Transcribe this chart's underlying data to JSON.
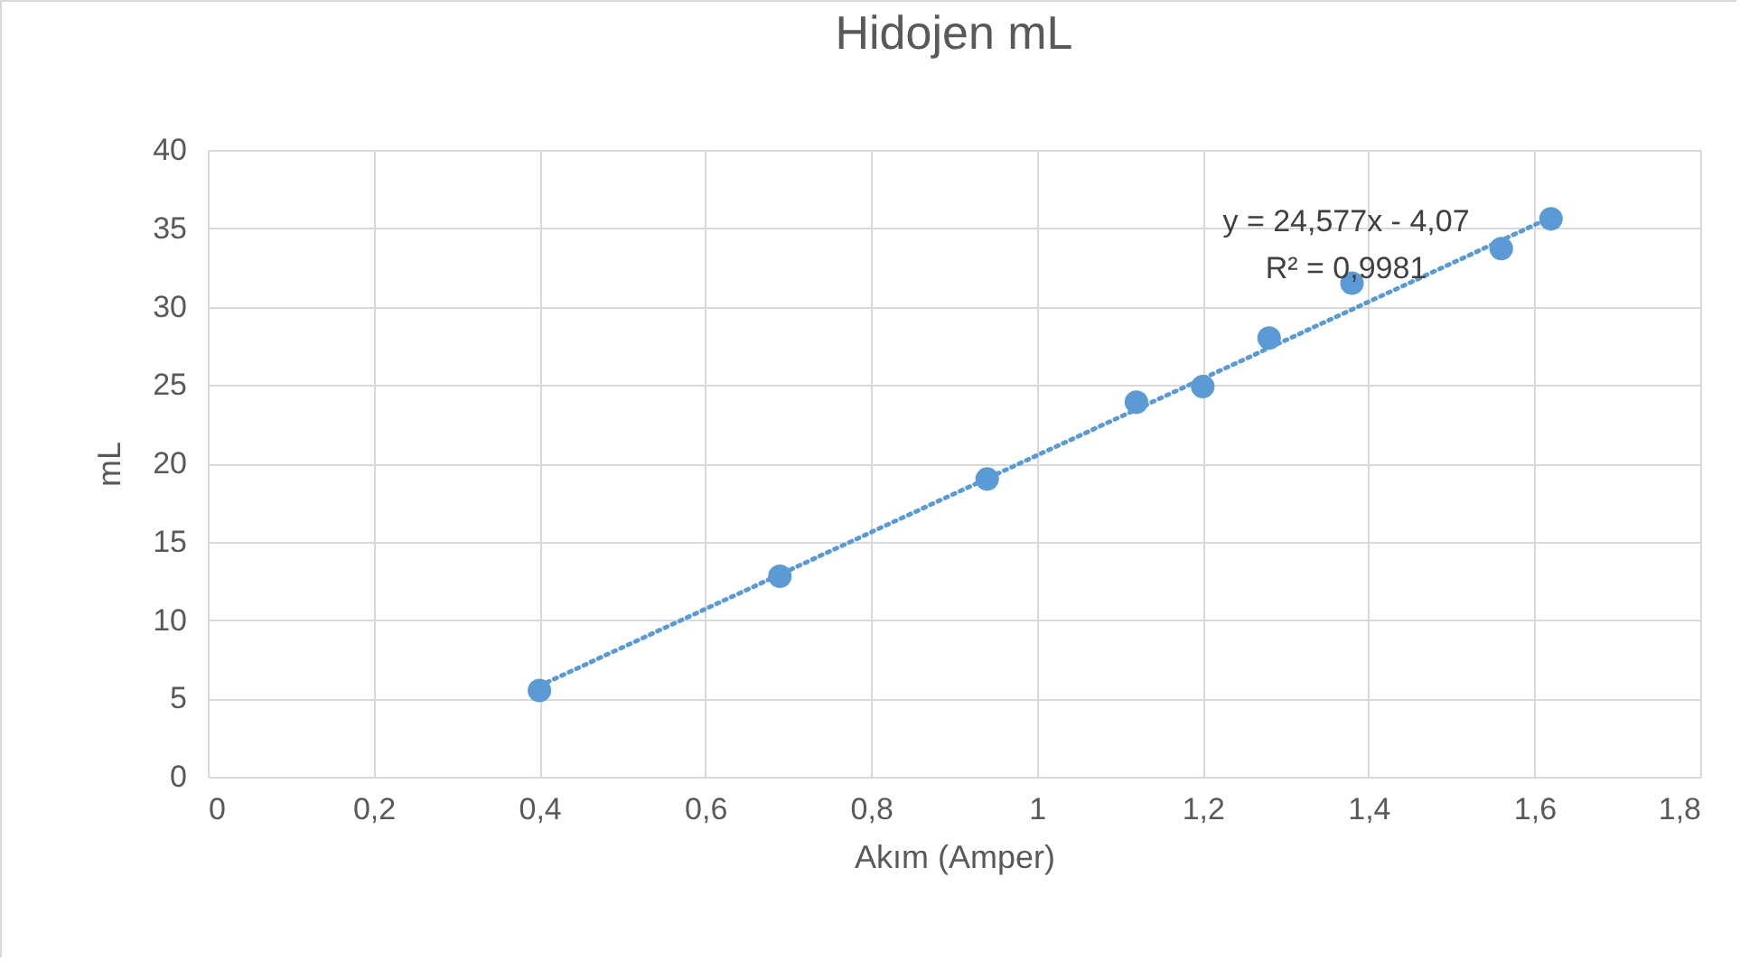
{
  "chart_data": {
    "type": "scatter",
    "title": "Hidojen mL",
    "xlabel": "Akım (Amper)",
    "ylabel": "mL",
    "xlim": [
      0,
      1.8
    ],
    "xticks": [
      0,
      {
        "value": 0.2,
        "label": "0,2"
      },
      {
        "value": 0.4,
        "label": "0,4"
      },
      {
        "value": 0.6,
        "label": "0,6"
      },
      {
        "value": 0.8,
        "label": "0,8"
      },
      1,
      {
        "value": 1.2,
        "label": "1,2"
      },
      {
        "value": 1.4,
        "label": "1,4"
      },
      {
        "value": 1.6,
        "label": "1,6"
      },
      {
        "value": 1.8,
        "label": "1,8"
      }
    ],
    "ylim": [
      0,
      40
    ],
    "yticks": [
      0,
      5,
      10,
      15,
      20,
      25,
      30,
      35,
      40
    ],
    "grid": true,
    "series": [
      {
        "color": "#5b9bd5",
        "marker": "circle",
        "x": [
          0.4,
          0.69,
          0.94,
          1.12,
          1.2,
          1.28,
          1.38,
          1.56,
          1.62
        ],
        "values": [
          5.5,
          12.8,
          19.0,
          23.9,
          24.9,
          28.0,
          31.5,
          33.7,
          35.6
        ]
      },
      {
        "type": "line",
        "color": "#5b9bd5",
        "line_style": "dotted",
        "x": [
          0.4,
          1.62
        ],
        "values": [
          5.8,
          35.7
        ]
      }
    ],
    "annotations": [
      "y = 24,577x - 4,07",
      "R² = 0,9981"
    ]
  }
}
